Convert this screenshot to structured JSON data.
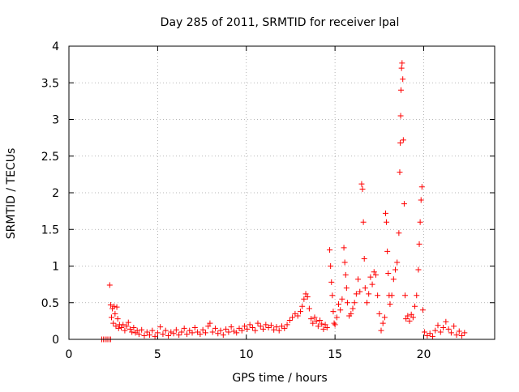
{
  "chart_data": {
    "type": "scatter",
    "title": "Day 285 of 2011, SRMTID for receiver lpal",
    "xlabel": "GPS time / hours",
    "ylabel": "SRMTID / TECUs",
    "xlim": [
      0,
      24
    ],
    "ylim": [
      0,
      4
    ],
    "grid": true,
    "marker": "+",
    "color": "#ff0000",
    "x_ticks": [
      0,
      5,
      10,
      15,
      20
    ],
    "x_tick_labels": [
      "0",
      "5",
      "10",
      "15",
      "20"
    ],
    "y_ticks": [
      0,
      0.5,
      1,
      1.5,
      2,
      2.5,
      3,
      3.5,
      4
    ],
    "y_tick_labels": [
      "0",
      "0.5",
      "1",
      "1.5",
      "2",
      "2.5",
      "3",
      "3.5",
      "4"
    ],
    "series": [
      {
        "name": "SRMTID",
        "points": [
          [
            1.85,
            0.0
          ],
          [
            1.95,
            0.0
          ],
          [
            2.05,
            0.0
          ],
          [
            2.15,
            0.0
          ],
          [
            2.25,
            0.0
          ],
          [
            2.35,
            0.0
          ],
          [
            2.3,
            0.74
          ],
          [
            2.35,
            0.47
          ],
          [
            2.4,
            0.3
          ],
          [
            2.45,
            0.42
          ],
          [
            2.5,
            0.22
          ],
          [
            2.55,
            0.45
          ],
          [
            2.6,
            0.35
          ],
          [
            2.65,
            0.18
          ],
          [
            2.7,
            0.44
          ],
          [
            2.75,
            0.28
          ],
          [
            2.8,
            0.15
          ],
          [
            2.85,
            0.2
          ],
          [
            2.95,
            0.16
          ],
          [
            3.05,
            0.2
          ],
          [
            3.15,
            0.12
          ],
          [
            3.25,
            0.18
          ],
          [
            3.35,
            0.23
          ],
          [
            3.45,
            0.14
          ],
          [
            3.55,
            0.1
          ],
          [
            3.65,
            0.16
          ],
          [
            3.75,
            0.09
          ],
          [
            3.85,
            0.12
          ],
          [
            3.95,
            0.07
          ],
          [
            4.1,
            0.13
          ],
          [
            4.25,
            0.05
          ],
          [
            4.4,
            0.1
          ],
          [
            4.55,
            0.06
          ],
          [
            4.7,
            0.12
          ],
          [
            4.85,
            0.04
          ],
          [
            5.0,
            0.09
          ],
          [
            5.15,
            0.17
          ],
          [
            5.3,
            0.07
          ],
          [
            5.45,
            0.12
          ],
          [
            5.6,
            0.05
          ],
          [
            5.75,
            0.1
          ],
          [
            5.9,
            0.08
          ],
          [
            6.05,
            0.13
          ],
          [
            6.2,
            0.06
          ],
          [
            6.35,
            0.1
          ],
          [
            6.5,
            0.15
          ],
          [
            6.65,
            0.07
          ],
          [
            6.8,
            0.12
          ],
          [
            6.95,
            0.09
          ],
          [
            7.1,
            0.16
          ],
          [
            7.25,
            0.1
          ],
          [
            7.4,
            0.07
          ],
          [
            7.55,
            0.13
          ],
          [
            7.7,
            0.09
          ],
          [
            7.85,
            0.18
          ],
          [
            7.95,
            0.22
          ],
          [
            8.1,
            0.1
          ],
          [
            8.25,
            0.15
          ],
          [
            8.4,
            0.08
          ],
          [
            8.55,
            0.12
          ],
          [
            8.7,
            0.06
          ],
          [
            8.85,
            0.14
          ],
          [
            9.0,
            0.1
          ],
          [
            9.15,
            0.17
          ],
          [
            9.3,
            0.11
          ],
          [
            9.45,
            0.09
          ],
          [
            9.6,
            0.15
          ],
          [
            9.75,
            0.12
          ],
          [
            9.9,
            0.18
          ],
          [
            10.05,
            0.14
          ],
          [
            10.2,
            0.2
          ],
          [
            10.35,
            0.16
          ],
          [
            10.5,
            0.12
          ],
          [
            10.65,
            0.22
          ],
          [
            10.8,
            0.18
          ],
          [
            10.95,
            0.14
          ],
          [
            11.1,
            0.2
          ],
          [
            11.25,
            0.16
          ],
          [
            11.4,
            0.19
          ],
          [
            11.55,
            0.13
          ],
          [
            11.7,
            0.17
          ],
          [
            11.85,
            0.12
          ],
          [
            12.0,
            0.18
          ],
          [
            12.15,
            0.15
          ],
          [
            12.3,
            0.2
          ],
          [
            12.45,
            0.26
          ],
          [
            12.6,
            0.3
          ],
          [
            12.75,
            0.35
          ],
          [
            12.9,
            0.32
          ],
          [
            13.05,
            0.38
          ],
          [
            13.15,
            0.45
          ],
          [
            13.25,
            0.55
          ],
          [
            13.35,
            0.62
          ],
          [
            13.45,
            0.58
          ],
          [
            13.55,
            0.42
          ],
          [
            13.65,
            0.28
          ],
          [
            13.75,
            0.22
          ],
          [
            13.85,
            0.3
          ],
          [
            13.95,
            0.25
          ],
          [
            14.05,
            0.18
          ],
          [
            14.15,
            0.26
          ],
          [
            14.25,
            0.21
          ],
          [
            14.35,
            0.14
          ],
          [
            14.45,
            0.2
          ],
          [
            14.55,
            0.16
          ],
          [
            14.7,
            1.22
          ],
          [
            14.75,
            1.0
          ],
          [
            14.8,
            0.78
          ],
          [
            14.85,
            0.6
          ],
          [
            14.9,
            0.38
          ],
          [
            14.95,
            0.22
          ],
          [
            15.0,
            0.2
          ],
          [
            15.1,
            0.3
          ],
          [
            15.2,
            0.48
          ],
          [
            15.3,
            0.4
          ],
          [
            15.4,
            0.55
          ],
          [
            15.5,
            1.25
          ],
          [
            15.55,
            1.05
          ],
          [
            15.6,
            0.88
          ],
          [
            15.65,
            0.7
          ],
          [
            15.7,
            0.5
          ],
          [
            15.8,
            0.32
          ],
          [
            15.9,
            0.35
          ],
          [
            16.0,
            0.42
          ],
          [
            16.1,
            0.5
          ],
          [
            16.2,
            0.62
          ],
          [
            16.3,
            0.82
          ],
          [
            16.4,
            0.65
          ],
          [
            16.5,
            2.12
          ],
          [
            16.55,
            2.05
          ],
          [
            16.6,
            1.6
          ],
          [
            16.65,
            1.1
          ],
          [
            16.7,
            0.7
          ],
          [
            16.8,
            0.5
          ],
          [
            16.9,
            0.62
          ],
          [
            17.0,
            0.85
          ],
          [
            17.1,
            0.75
          ],
          [
            17.2,
            0.92
          ],
          [
            17.3,
            0.88
          ],
          [
            17.4,
            0.6
          ],
          [
            17.5,
            0.35
          ],
          [
            17.6,
            0.12
          ],
          [
            17.7,
            0.22
          ],
          [
            17.8,
            0.3
          ],
          [
            17.85,
            1.72
          ],
          [
            17.9,
            1.6
          ],
          [
            17.95,
            1.2
          ],
          [
            18.0,
            0.9
          ],
          [
            18.05,
            0.6
          ],
          [
            18.1,
            0.48
          ],
          [
            18.2,
            0.6
          ],
          [
            18.3,
            0.82
          ],
          [
            18.4,
            0.95
          ],
          [
            18.5,
            1.05
          ],
          [
            18.6,
            1.45
          ],
          [
            18.65,
            2.28
          ],
          [
            18.68,
            2.68
          ],
          [
            18.7,
            3.05
          ],
          [
            18.72,
            3.4
          ],
          [
            18.75,
            3.7
          ],
          [
            18.78,
            3.77
          ],
          [
            18.82,
            3.55
          ],
          [
            18.85,
            2.72
          ],
          [
            18.9,
            1.85
          ],
          [
            18.95,
            0.6
          ],
          [
            19.0,
            0.28
          ],
          [
            19.1,
            0.32
          ],
          [
            19.2,
            0.25
          ],
          [
            19.3,
            0.34
          ],
          [
            19.4,
            0.3
          ],
          [
            19.5,
            0.45
          ],
          [
            19.6,
            0.6
          ],
          [
            19.7,
            0.95
          ],
          [
            19.75,
            1.3
          ],
          [
            19.8,
            1.6
          ],
          [
            19.85,
            1.9
          ],
          [
            19.9,
            2.08
          ],
          [
            19.95,
            0.4
          ],
          [
            20.05,
            0.1
          ],
          [
            20.2,
            0.05
          ],
          [
            20.35,
            0.08
          ],
          [
            20.5,
            0.04
          ],
          [
            20.65,
            0.12
          ],
          [
            20.8,
            0.19
          ],
          [
            20.95,
            0.1
          ],
          [
            21.1,
            0.16
          ],
          [
            21.25,
            0.24
          ],
          [
            21.4,
            0.14
          ],
          [
            21.55,
            0.09
          ],
          [
            21.7,
            0.18
          ],
          [
            21.85,
            0.06
          ],
          [
            22.0,
            0.11
          ],
          [
            22.15,
            0.05
          ],
          [
            22.3,
            0.09
          ]
        ]
      }
    ]
  }
}
